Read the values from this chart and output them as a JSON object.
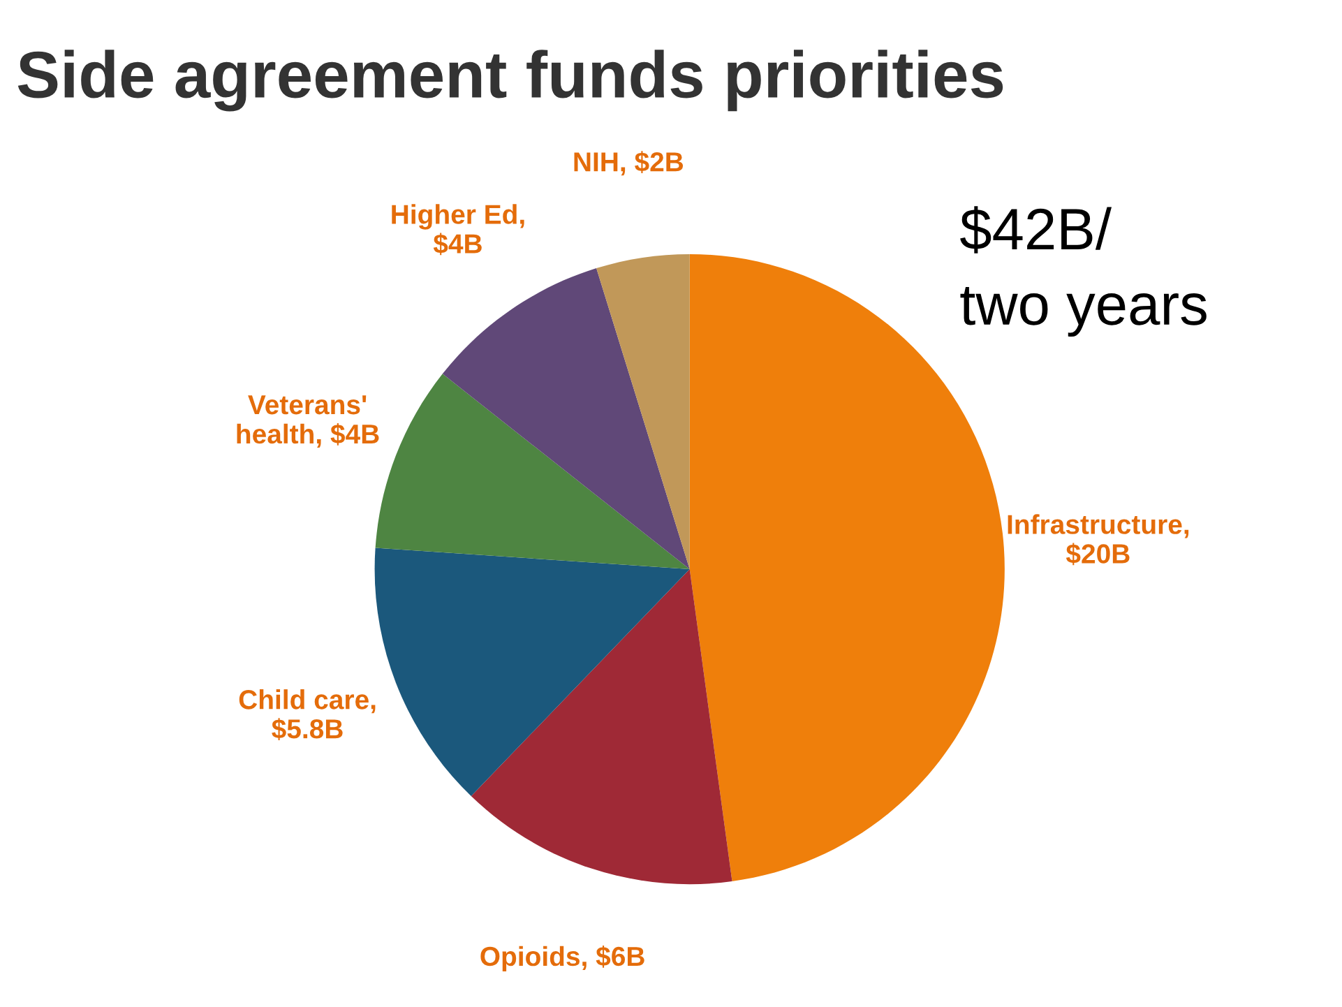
{
  "chart_data": {
    "type": "pie",
    "title": "Side agreement funds priorities",
    "categories": [
      "Infrastructure,\n$20B",
      "Opioids, $6B",
      "Child care,\n$5.8B",
      "Veterans'\nhealth, $4B",
      "Higher Ed,\n$4B",
      "NIH, $2B"
    ],
    "values": [
      20,
      6,
      5.8,
      4,
      4,
      2
    ],
    "colors": [
      "#ef7f0b",
      "#9f2936",
      "#1b587c",
      "#4e8542",
      "#604878",
      "#c19859"
    ],
    "annotations": [
      "$42B/\ntwo years"
    ],
    "legend": false
  }
}
